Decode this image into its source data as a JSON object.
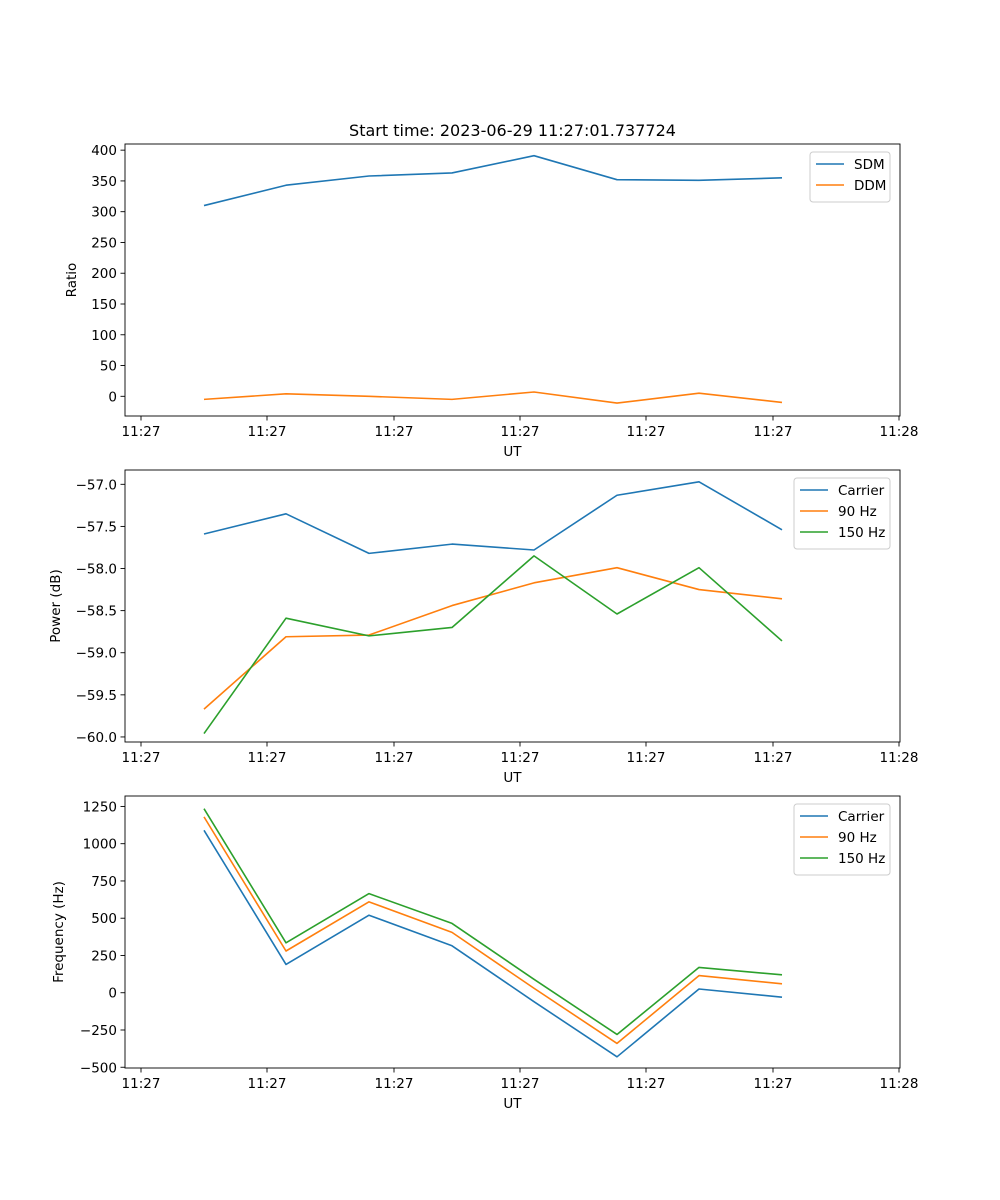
{
  "figure": {
    "title": "Start time: 2023-06-29 11:27:01.737724"
  },
  "colors": {
    "blue": "#1f77b4",
    "orange": "#ff7f0e",
    "green": "#2ca02c"
  },
  "chart_data": [
    {
      "type": "line",
      "title": "Start time: 2023-06-29 11:27:01.737724",
      "xlabel": "UT",
      "ylabel": "Ratio",
      "x_tick_labels": [
        "11:27",
        "11:27",
        "11:27",
        "11:27",
        "11:27",
        "11:27",
        "11:28"
      ],
      "y_ticks": [
        0,
        50,
        100,
        150,
        200,
        250,
        300,
        350,
        400
      ],
      "y_tick_labels": [
        "0",
        "50",
        "100",
        "150",
        "200",
        "250",
        "300",
        "350",
        "400"
      ],
      "ylim": [
        -32,
        410
      ],
      "legend_position": "top-right",
      "series": [
        {
          "name": "SDM",
          "color": "#1f77b4",
          "values": [
            310,
            343,
            358,
            363,
            391,
            352,
            351,
            355
          ]
        },
        {
          "name": "DDM",
          "color": "#ff7f0e",
          "values": [
            -5,
            4,
            0,
            -5,
            7,
            -11,
            5,
            -10
          ]
        }
      ]
    },
    {
      "type": "line",
      "xlabel": "UT",
      "ylabel": "Power (dB)",
      "x_tick_labels": [
        "11:27",
        "11:27",
        "11:27",
        "11:27",
        "11:27",
        "11:27",
        "11:28"
      ],
      "y_ticks": [
        -60.0,
        -59.5,
        -59.0,
        -58.5,
        -58.0,
        -57.5,
        -57.0
      ],
      "y_tick_labels": [
        "−60.0",
        "−59.5",
        "−59.0",
        "−58.5",
        "−58.0",
        "−57.5",
        "−57.0"
      ],
      "ylim": [
        -60.06,
        -56.83
      ],
      "legend_position": "top-right",
      "series": [
        {
          "name": "Carrier",
          "color": "#1f77b4",
          "values": [
            -57.59,
            -57.35,
            -57.82,
            -57.71,
            -57.78,
            -57.13,
            -56.97,
            -57.54
          ]
        },
        {
          "name": "90 Hz",
          "color": "#ff7f0e",
          "values": [
            -59.67,
            -58.81,
            -58.79,
            -58.44,
            -58.17,
            -57.99,
            -58.25,
            -58.36
          ]
        },
        {
          "name": "150 Hz",
          "color": "#2ca02c",
          "values": [
            -59.96,
            -58.59,
            -58.8,
            -58.7,
            -57.85,
            -58.54,
            -57.99,
            -58.86
          ]
        }
      ]
    },
    {
      "type": "line",
      "xlabel": "UT",
      "ylabel": "Frequency (Hz)",
      "x_tick_labels": [
        "11:27",
        "11:27",
        "11:27",
        "11:27",
        "11:27",
        "11:27",
        "11:28"
      ],
      "y_ticks": [
        -500,
        -250,
        0,
        250,
        500,
        750,
        1000,
        1250
      ],
      "y_tick_labels": [
        "−500",
        "−250",
        "0",
        "250",
        "500",
        "750",
        "1000",
        "1250"
      ],
      "ylim": [
        -505,
        1320
      ],
      "legend_position": "top-right",
      "series": [
        {
          "name": "Carrier",
          "color": "#1f77b4",
          "values": [
            1090,
            190,
            520,
            315,
            -60,
            -430,
            25,
            -30
          ]
        },
        {
          "name": "90 Hz",
          "color": "#ff7f0e",
          "values": [
            1180,
            280,
            610,
            405,
            30,
            -340,
            115,
            60
          ]
        },
        {
          "name": "150 Hz",
          "color": "#2ca02c",
          "values": [
            1235,
            335,
            665,
            465,
            90,
            -280,
            170,
            120
          ]
        }
      ]
    }
  ]
}
